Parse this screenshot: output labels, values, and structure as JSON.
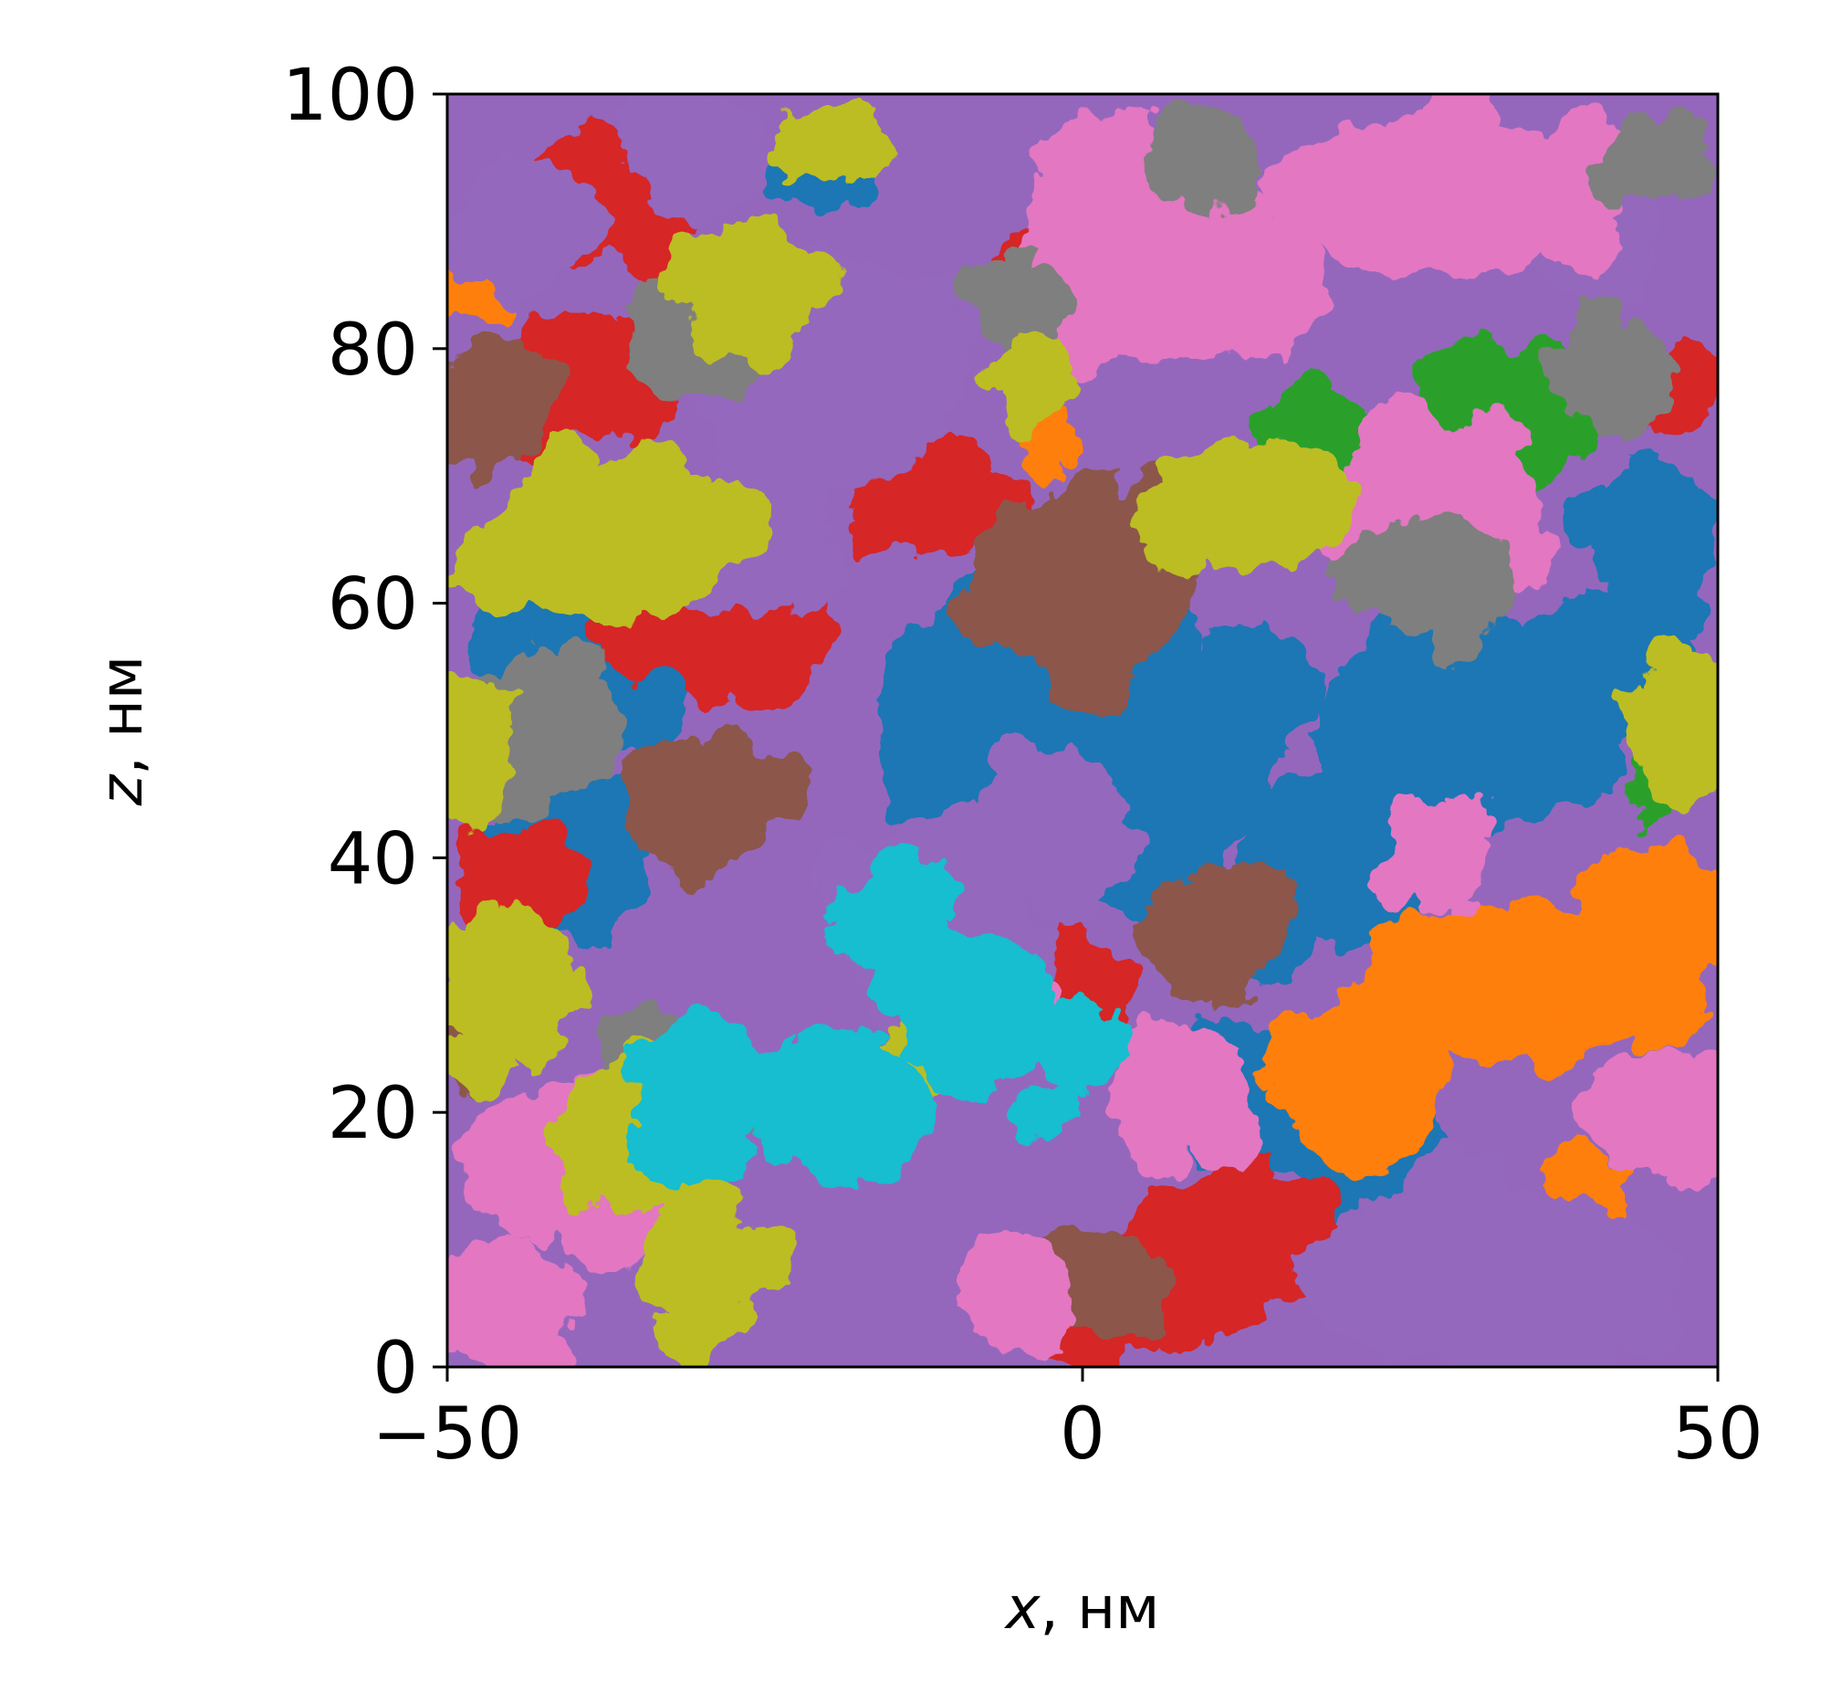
{
  "chart_data": {
    "type": "scatter",
    "title": "",
    "xlabel": {
      "var": "x",
      "unit": ", нм"
    },
    "ylabel": {
      "var": "z",
      "unit": ", нм"
    },
    "xlim": [
      -50,
      50
    ],
    "ylim": [
      0,
      100
    ],
    "xticks": [
      -50,
      0,
      50
    ],
    "yticks": [
      0,
      20,
      40,
      60,
      80,
      100
    ],
    "xtick_labels": [
      "−50",
      "0",
      "50"
    ],
    "ytick_labels": [
      "0",
      "20",
      "40",
      "60",
      "80",
      "100"
    ],
    "grid": false,
    "legend": "none",
    "background_color": "#9467bd",
    "series": [
      {
        "color": "#1f77b4",
        "blobs": [
          [
            5,
            48,
            10,
            9
          ],
          [
            -10,
            50,
            6,
            10
          ],
          [
            30,
            50,
            12,
            8
          ],
          [
            20,
            40,
            8,
            7
          ],
          [
            -40,
            40,
            6,
            6
          ],
          [
            45,
            65,
            5,
            6
          ],
          [
            -38,
            58,
            7,
            7
          ],
          [
            22,
            18,
            6,
            5
          ],
          [
            -20,
            94,
            4,
            3
          ],
          [
            12,
            22,
            6,
            5
          ],
          [
            40,
            55,
            6,
            6
          ],
          [
            -5,
            55,
            5,
            4
          ]
        ]
      },
      {
        "color": "#ff7f0e",
        "blobs": [
          [
            34,
            30,
            12,
            6
          ],
          [
            22,
            22,
            6,
            7
          ],
          [
            45,
            35,
            6,
            6
          ],
          [
            26,
            70,
            3,
            3
          ],
          [
            -47,
            85,
            3,
            3
          ],
          [
            40,
            12,
            3,
            5
          ],
          [
            -3,
            72,
            2,
            3
          ]
        ]
      },
      {
        "color": "#2ca02c",
        "blobs": [
          [
            33,
            74,
            6,
            6
          ],
          [
            18,
            74,
            4,
            3
          ],
          [
            -33,
            15,
            3,
            4
          ],
          [
            -45,
            45,
            2,
            2
          ],
          [
            45,
            46,
            2,
            3
          ]
        ]
      },
      {
        "color": "#d62728",
        "blobs": [
          [
            -36,
            92,
            6,
            5
          ],
          [
            -40,
            78,
            6,
            5
          ],
          [
            -28,
            60,
            7,
            7
          ],
          [
            12,
            10,
            9,
            5
          ],
          [
            0,
            5,
            8,
            4
          ],
          [
            -12,
            68,
            6,
            4
          ],
          [
            -2,
            30,
            5,
            4
          ],
          [
            -44,
            38,
            5,
            4
          ],
          [
            47,
            76,
            3,
            3
          ],
          [
            -4,
            86,
            3,
            3
          ]
        ]
      },
      {
        "color": "#9467bd",
        "blobs": [
          [
            -20,
            78,
            10,
            9
          ],
          [
            -25,
            65,
            5,
            6
          ],
          [
            -12,
            35,
            7,
            8
          ],
          [
            -2,
            42,
            6,
            6
          ],
          [
            32,
            7,
            15,
            7
          ],
          [
            -44,
            90,
            5,
            5
          ],
          [
            -30,
            95,
            5,
            5
          ],
          [
            8,
            20,
            4,
            3
          ],
          [
            40,
            88,
            5,
            4
          ]
        ]
      },
      {
        "color": "#8c564b",
        "blobs": [
          [
            0,
            62,
            9,
            7
          ],
          [
            10,
            34,
            5,
            5
          ],
          [
            -46,
            76,
            4,
            5
          ],
          [
            -30,
            44,
            6,
            5
          ],
          [
            0,
            7,
            6,
            4
          ],
          [
            -48,
            28,
            2,
            6
          ]
        ]
      },
      {
        "color": "#e377c2",
        "blobs": [
          [
            5,
            88,
            10,
            9
          ],
          [
            28,
            92,
            14,
            6
          ],
          [
            -42,
            16,
            7,
            6
          ],
          [
            -45,
            5,
            5,
            5
          ],
          [
            -5,
            5,
            4,
            4
          ],
          [
            28,
            68,
            8,
            6
          ],
          [
            8,
            22,
            5,
            5
          ],
          [
            -5,
            28,
            3,
            3
          ],
          [
            45,
            20,
            5,
            5
          ],
          [
            28,
            40,
            4,
            4
          ]
        ]
      },
      {
        "color": "#7f7f7f",
        "blobs": [
          [
            -30,
            80,
            6,
            4
          ],
          [
            -42,
            50,
            6,
            5
          ],
          [
            28,
            62,
            6,
            5
          ],
          [
            -35,
            25,
            3,
            3
          ],
          [
            -30,
            20,
            4,
            4
          ],
          [
            10,
            95,
            4,
            4
          ],
          [
            -5,
            84,
            4,
            3
          ],
          [
            42,
            78,
            5,
            4
          ],
          [
            45,
            95,
            4,
            3
          ]
        ]
      },
      {
        "color": "#bcbd22",
        "blobs": [
          [
            -37,
            65,
            10,
            6
          ],
          [
            -26,
            85,
            5,
            5
          ],
          [
            -45,
            30,
            5,
            6
          ],
          [
            -36,
            18,
            5,
            6
          ],
          [
            -30,
            8,
            5,
            5
          ],
          [
            14,
            68,
            8,
            5
          ],
          [
            47,
            50,
            4,
            6
          ],
          [
            -48,
            48,
            3,
            6
          ],
          [
            -4,
            78,
            3,
            3
          ],
          [
            -20,
            96,
            4,
            3
          ],
          [
            -13,
            24,
            3,
            3
          ]
        ]
      },
      {
        "color": "#17becf",
        "blobs": [
          [
            -8,
            28,
            6,
            6
          ],
          [
            -18,
            20,
            6,
            6
          ],
          [
            -30,
            22,
            5,
            6
          ],
          [
            -15,
            35,
            4,
            4
          ],
          [
            0,
            25,
            4,
            3
          ],
          [
            -3,
            20,
            2,
            2
          ]
        ]
      }
    ]
  }
}
